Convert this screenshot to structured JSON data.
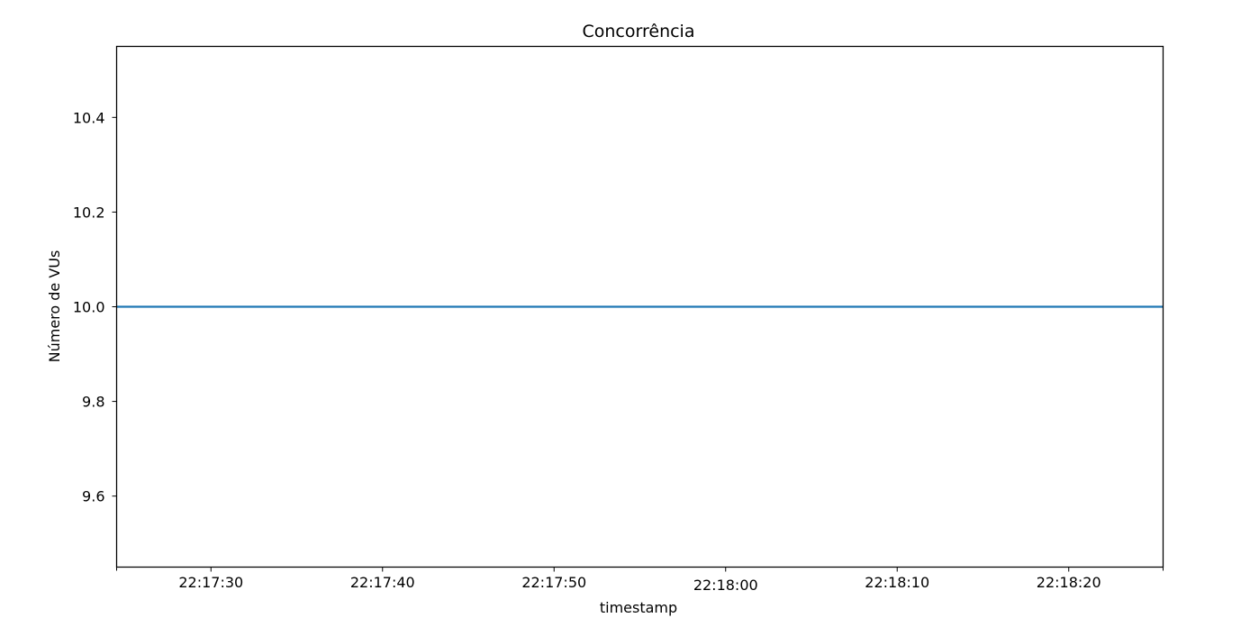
{
  "chart_data": {
    "type": "line",
    "title": "Concorrência",
    "xlabel": "timestamp",
    "ylabel": "Número de VUs",
    "xlim": [
      "22:17:24.5",
      "22:18:25.5"
    ],
    "ylim": [
      9.45,
      10.55
    ],
    "x_ticks": [
      {
        "value": "22:17:30",
        "label": "22:17:30"
      },
      {
        "value": "22:17:40",
        "label": "22:17:40"
      },
      {
        "value": "22:17:50",
        "label": "22:17:50"
      },
      {
        "value": "22:18:00",
        "label": "22:18:00"
      },
      {
        "value": "22:18:10",
        "label": "22:18:10"
      },
      {
        "value": "22:18:20",
        "label": "22:18:20"
      }
    ],
    "x_minor_ticks": [
      "22:17:24.5",
      "22:18:25.5"
    ],
    "y_ticks": [
      {
        "value": 9.6,
        "label": "9.6"
      },
      {
        "value": 9.8,
        "label": "9.8"
      },
      {
        "value": 10.0,
        "label": "10.0"
      },
      {
        "value": 10.2,
        "label": "10.2"
      },
      {
        "value": 10.4,
        "label": "10.4"
      }
    ],
    "grid": false,
    "series": [
      {
        "color": "#1f77b4",
        "points": [
          {
            "x": "22:17:24.5",
            "y": 10.0
          },
          {
            "x": "22:18:25.5",
            "y": 10.0
          }
        ]
      }
    ]
  }
}
